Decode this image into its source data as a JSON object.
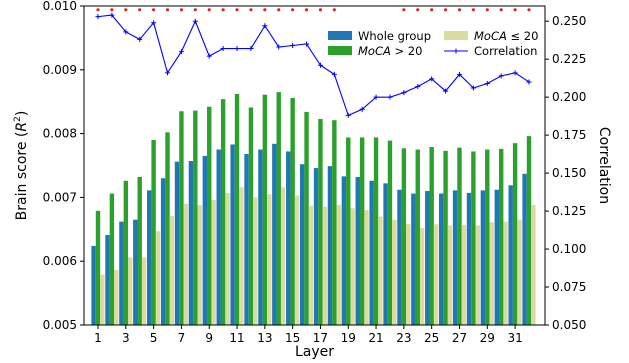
{
  "chart_data": {
    "type": "bar",
    "xlabel": "Layer",
    "ylabel_left": "Brain score (R²)",
    "ylabel_right": "Correlation",
    "ylim_left": [
      0.005,
      0.01
    ],
    "ylim_right": [
      0.05,
      0.26
    ],
    "yticks_left": [
      "0.005",
      "0.006",
      "0.007",
      "0.008",
      "0.009",
      "0.010"
    ],
    "yticks_right": [
      "0.050",
      "0.075",
      "0.100",
      "0.125",
      "0.150",
      "0.175",
      "0.200",
      "0.225",
      "0.250"
    ],
    "xtick_labels": [
      "1",
      "3",
      "5",
      "7",
      "9",
      "11",
      "13",
      "15",
      "17",
      "19",
      "21",
      "23",
      "25",
      "27",
      "29",
      "31"
    ],
    "legend_placement": "top-right",
    "layers": [
      1,
      2,
      3,
      4,
      5,
      6,
      7,
      8,
      9,
      10,
      11,
      12,
      13,
      14,
      15,
      16,
      17,
      18,
      19,
      20,
      21,
      22,
      23,
      24,
      25,
      26,
      27,
      28,
      29,
      30,
      31,
      32
    ],
    "series": [
      {
        "name": "Whole group",
        "color": "#1f77b4",
        "values": [
          0.00624,
          0.00641,
          0.00662,
          0.00665,
          0.00711,
          0.0073,
          0.00756,
          0.00757,
          0.00765,
          0.00775,
          0.00783,
          0.00768,
          0.00775,
          0.00784,
          0.00772,
          0.00752,
          0.00746,
          0.00749,
          0.00733,
          0.00732,
          0.00726,
          0.00722,
          0.00712,
          0.00706,
          0.0071,
          0.00706,
          0.00711,
          0.00707,
          0.00711,
          0.00712,
          0.00719,
          0.00737
        ]
      },
      {
        "name": "MoCA > 20",
        "name_label": "MoCA",
        "name_suffix": "> 20",
        "color": "#2ca02c",
        "values": [
          0.00679,
          0.00706,
          0.00726,
          0.00732,
          0.0079,
          0.00802,
          0.00835,
          0.00836,
          0.00842,
          0.00854,
          0.00862,
          0.00841,
          0.00861,
          0.00865,
          0.00856,
          0.00834,
          0.00823,
          0.00821,
          0.00794,
          0.00794,
          0.00794,
          0.00789,
          0.00777,
          0.00775,
          0.00779,
          0.00773,
          0.00778,
          0.00772,
          0.00775,
          0.00776,
          0.00785,
          0.00796
        ]
      },
      {
        "name": "MoCA ≤ 20",
        "name_label": "MoCA",
        "name_suffix": "≤ 20",
        "color": "#dbdba0",
        "values": [
          0.00579,
          0.00586,
          0.00606,
          0.00606,
          0.00647,
          0.00671,
          0.0069,
          0.00688,
          0.00696,
          0.00707,
          0.00716,
          0.007,
          0.00705,
          0.00716,
          0.00703,
          0.00687,
          0.00685,
          0.00688,
          0.00683,
          0.0068,
          0.0067,
          0.00665,
          0.00658,
          0.00652,
          0.00658,
          0.00656,
          0.00657,
          0.00656,
          0.00661,
          0.00662,
          0.00665,
          0.00688
        ]
      },
      {
        "name": "Correlation",
        "color": "#0000ff",
        "axis": "right",
        "values": [
          0.253,
          0.254,
          0.243,
          0.238,
          0.249,
          0.216,
          0.23,
          0.25,
          0.227,
          0.232,
          0.232,
          0.232,
          0.247,
          0.233,
          0.234,
          0.235,
          0.221,
          0.215,
          0.188,
          0.192,
          0.2,
          0.2,
          0.203,
          0.207,
          0.212,
          0.204,
          0.215,
          0.206,
          0.209,
          0.214,
          0.216,
          0.21
        ]
      }
    ],
    "significance_marker": {
      "color": "#d62728",
      "y_right": 0.2575,
      "layers": [
        1,
        2,
        3,
        4,
        5,
        6,
        7,
        8,
        9,
        10,
        11,
        12,
        13,
        14,
        15,
        16,
        17,
        18,
        23,
        24,
        25,
        26,
        27,
        28,
        29,
        30,
        31,
        32
      ]
    }
  }
}
